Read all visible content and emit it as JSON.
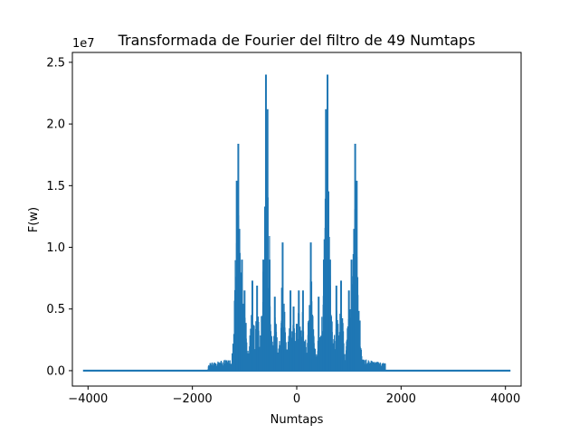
{
  "chart_data": {
    "type": "line",
    "title": "Transformada de Fourier del filtro de 49 Numtaps",
    "xlabel": "Numtaps",
    "ylabel": "F(w)",
    "y_offset_label": "1e7",
    "xlim": [
      -4300,
      4300
    ],
    "ylim": [
      -1250000,
      25800000
    ],
    "x_ticks": [
      -4000,
      -2000,
      0,
      2000,
      4000
    ],
    "x_tick_labels": [
      "−4000",
      "−2000",
      "0",
      "2000",
      "4000"
    ],
    "y_ticks": [
      0,
      5000000,
      10000000,
      15000000,
      20000000,
      25000000
    ],
    "y_tick_labels": [
      "0.0",
      "0.5",
      "1.0",
      "1.5",
      "2.0",
      "2.5"
    ],
    "grid": false,
    "series_color": "#1f77b4",
    "series": [
      {
        "name": "F(w)",
        "x_range": [
          -4096,
          4096
        ],
        "baseline": 0,
        "approx_peaks": [
          {
            "x": -1120,
            "y": 18400000
          },
          {
            "x": -1150,
            "y": 15400000
          },
          {
            "x": -1100,
            "y": 11500000
          },
          {
            "x": -1050,
            "y": 9000000
          },
          {
            "x": -1000,
            "y": 6500000
          },
          {
            "x": -850,
            "y": 7300000
          },
          {
            "x": -760,
            "y": 6900000
          },
          {
            "x": -640,
            "y": 9000000
          },
          {
            "x": -590,
            "y": 24000000
          },
          {
            "x": -560,
            "y": 21200000
          },
          {
            "x": -520,
            "y": 9000000
          },
          {
            "x": -420,
            "y": 6000000
          },
          {
            "x": -270,
            "y": 10400000
          },
          {
            "x": -120,
            "y": 6500000
          },
          {
            "x": -60,
            "y": 5200000
          },
          {
            "x": 0,
            "y": 3800000
          },
          {
            "x": 40,
            "y": 6500000
          },
          {
            "x": 120,
            "y": 6500000
          },
          {
            "x": 270,
            "y": 10400000
          },
          {
            "x": 420,
            "y": 6000000
          },
          {
            "x": 520,
            "y": 9000000
          },
          {
            "x": 560,
            "y": 21200000
          },
          {
            "x": 590,
            "y": 24000000
          },
          {
            "x": 640,
            "y": 9000000
          },
          {
            "x": 760,
            "y": 6900000
          },
          {
            "x": 850,
            "y": 7300000
          },
          {
            "x": 1000,
            "y": 6500000
          },
          {
            "x": 1050,
            "y": 9000000
          },
          {
            "x": 1100,
            "y": 11500000
          },
          {
            "x": 1120,
            "y": 18400000
          },
          {
            "x": 1150,
            "y": 15400000
          }
        ]
      }
    ]
  }
}
